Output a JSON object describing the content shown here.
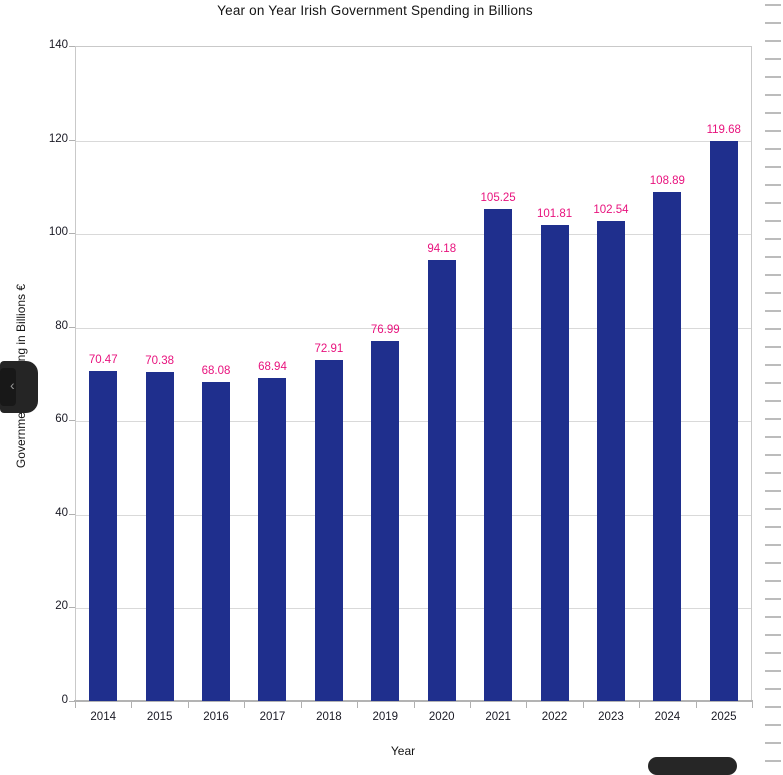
{
  "chart_data": {
    "type": "bar",
    "title": "Year on Year Irish Government Spending in Billions",
    "xlabel": "Year",
    "ylabel": "Government Spending in Billions €",
    "categories": [
      "2014",
      "2015",
      "2016",
      "2017",
      "2018",
      "2019",
      "2020",
      "2021",
      "2022",
      "2023",
      "2024",
      "2025"
    ],
    "values": [
      70.47,
      70.38,
      68.08,
      68.94,
      72.91,
      76.99,
      94.18,
      105.25,
      101.81,
      102.54,
      108.89,
      119.68
    ],
    "data_labels": [
      "70.47",
      "70.38",
      "68.08",
      "68.94",
      "72.91",
      "76.99",
      "94.18",
      "105.25",
      "101.81",
      "102.54",
      "108.89",
      "119.68"
    ],
    "ylim": [
      0,
      140
    ],
    "ytick_step": 20,
    "grid": true,
    "legend": "none",
    "bar_color": "#1f2f8d",
    "data_label_color": "#e8127d"
  },
  "overlays": {
    "sidebar_handle_chevron": "‹"
  }
}
